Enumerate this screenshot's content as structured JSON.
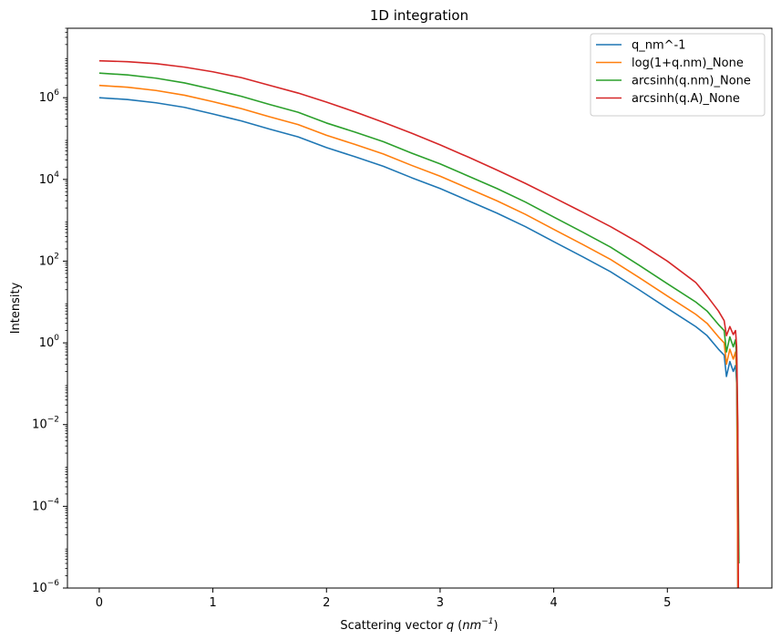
{
  "chart_data": {
    "type": "line",
    "title": "1D integration",
    "xlabel": "Scattering vector q (nm^-1)",
    "xlabel_parts": {
      "prefix": "Scattering vector ",
      "var": "q",
      "unit_open": " (",
      "unit": "nm",
      "unit_exp": "−1",
      "unit_close": ")"
    },
    "ylabel": "Intensity",
    "y_scale": "log",
    "xlim": [
      -0.28,
      5.92
    ],
    "ylim": [
      1e-06,
      50000000.0
    ],
    "x_ticks": [
      0,
      1,
      2,
      3,
      4,
      5
    ],
    "x_tick_labels": [
      "0",
      "1",
      "2",
      "3",
      "4",
      "5"
    ],
    "y_ticks": [
      1e-06,
      0.0001,
      0.01,
      1,
      100,
      10000,
      1000000
    ],
    "y_tick_labels": [
      {
        "base": "10",
        "exp": "−6"
      },
      {
        "base": "10",
        "exp": "−4"
      },
      {
        "base": "10",
        "exp": "−2"
      },
      {
        "base": "10",
        "exp": "0"
      },
      {
        "base": "10",
        "exp": "2"
      },
      {
        "base": "10",
        "exp": "4"
      },
      {
        "base": "10",
        "exp": "6"
      }
    ],
    "grid": false,
    "legend_position": "top-right",
    "series": [
      {
        "name": "q_nm^-1",
        "color": "#1f77b4",
        "points": [
          [
            0,
            1000000
          ],
          [
            0.25,
            900000
          ],
          [
            0.5,
            750000
          ],
          [
            0.75,
            580000
          ],
          [
            1.0,
            400000
          ],
          [
            1.25,
            270000
          ],
          [
            1.5,
            170000
          ],
          [
            1.75,
            110000
          ],
          [
            2.0,
            60000
          ],
          [
            2.25,
            36000
          ],
          [
            2.5,
            21000
          ],
          [
            2.75,
            11000
          ],
          [
            3.0,
            6000
          ],
          [
            3.25,
            3000
          ],
          [
            3.5,
            1500
          ],
          [
            3.75,
            700
          ],
          [
            4.0,
            300
          ],
          [
            4.25,
            130
          ],
          [
            4.5,
            55
          ],
          [
            4.75,
            20
          ],
          [
            5.0,
            7
          ],
          [
            5.25,
            2.5
          ],
          [
            5.35,
            1.5
          ],
          [
            5.45,
            0.7
          ],
          [
            5.5,
            0.5
          ],
          [
            5.52,
            0.15
          ],
          [
            5.55,
            0.35
          ],
          [
            5.58,
            0.2
          ],
          [
            5.6,
            0.28
          ],
          [
            5.61,
            0.1
          ],
          [
            5.615,
            0.001
          ],
          [
            5.62,
            1e-06
          ]
        ]
      },
      {
        "name": "log(1+q.nm)_None",
        "color": "#ff7f0e",
        "points": [
          [
            0,
            2000000
          ],
          [
            0.25,
            1800000
          ],
          [
            0.5,
            1500000
          ],
          [
            0.75,
            1150000
          ],
          [
            1.0,
            800000
          ],
          [
            1.25,
            540000
          ],
          [
            1.5,
            340000
          ],
          [
            1.75,
            220000
          ],
          [
            2.0,
            120000
          ],
          [
            2.25,
            72000
          ],
          [
            2.5,
            42000
          ],
          [
            2.75,
            22000
          ],
          [
            3.0,
            12000
          ],
          [
            3.25,
            6000
          ],
          [
            3.5,
            3000
          ],
          [
            3.75,
            1400
          ],
          [
            4.0,
            600
          ],
          [
            4.25,
            260
          ],
          [
            4.5,
            110
          ],
          [
            4.75,
            40
          ],
          [
            5.0,
            14
          ],
          [
            5.25,
            5
          ],
          [
            5.35,
            3
          ],
          [
            5.45,
            1.4
          ],
          [
            5.5,
            1.0
          ],
          [
            5.52,
            0.3
          ],
          [
            5.55,
            0.7
          ],
          [
            5.58,
            0.4
          ],
          [
            5.6,
            0.6
          ],
          [
            5.61,
            0.2
          ],
          [
            5.615,
            0.002
          ],
          [
            5.62,
            1e-06
          ]
        ]
      },
      {
        "name": "arcsinh(q.nm)_None",
        "color": "#2ca02c",
        "points": [
          [
            0,
            4000000
          ],
          [
            0.25,
            3600000
          ],
          [
            0.5,
            3000000
          ],
          [
            0.75,
            2300000
          ],
          [
            1.0,
            1600000
          ],
          [
            1.25,
            1080000
          ],
          [
            1.5,
            680000
          ],
          [
            1.75,
            440000
          ],
          [
            2.0,
            240000
          ],
          [
            2.25,
            144000
          ],
          [
            2.5,
            84000
          ],
          [
            2.75,
            44000
          ],
          [
            3.0,
            24000
          ],
          [
            3.25,
            12000
          ],
          [
            3.5,
            6000
          ],
          [
            3.75,
            2800
          ],
          [
            4.0,
            1200
          ],
          [
            4.25,
            520
          ],
          [
            4.5,
            220
          ],
          [
            4.75,
            80
          ],
          [
            5.0,
            28
          ],
          [
            5.25,
            10
          ],
          [
            5.35,
            6
          ],
          [
            5.45,
            2.8
          ],
          [
            5.5,
            2.0
          ],
          [
            5.52,
            0.6
          ],
          [
            5.55,
            1.4
          ],
          [
            5.58,
            0.8
          ],
          [
            5.6,
            1.2
          ],
          [
            5.61,
            0.4
          ],
          [
            5.62,
            0.005
          ],
          [
            5.63,
            4e-06
          ]
        ]
      },
      {
        "name": "arcsinh(q.A)_None",
        "color": "#d62728",
        "points": [
          [
            0,
            8000000
          ],
          [
            0.25,
            7600000
          ],
          [
            0.5,
            6800000
          ],
          [
            0.75,
            5600000
          ],
          [
            1.0,
            4300000
          ],
          [
            1.25,
            3100000
          ],
          [
            1.5,
            2000000
          ],
          [
            1.75,
            1300000
          ],
          [
            2.0,
            780000
          ],
          [
            2.25,
            450000
          ],
          [
            2.5,
            250000
          ],
          [
            2.75,
            135000
          ],
          [
            3.0,
            70000
          ],
          [
            3.25,
            35000
          ],
          [
            3.5,
            17000
          ],
          [
            3.75,
            8000
          ],
          [
            4.0,
            3600
          ],
          [
            4.25,
            1600
          ],
          [
            4.5,
            700
          ],
          [
            4.75,
            280
          ],
          [
            5.0,
            100
          ],
          [
            5.25,
            30
          ],
          [
            5.35,
            14
          ],
          [
            5.45,
            6
          ],
          [
            5.5,
            3.5
          ],
          [
            5.52,
            1.5
          ],
          [
            5.55,
            2.5
          ],
          [
            5.58,
            1.6
          ],
          [
            5.6,
            2.0
          ],
          [
            5.61,
            0.8
          ],
          [
            5.62,
            0.01
          ],
          [
            5.625,
            1e-06
          ]
        ]
      }
    ]
  }
}
